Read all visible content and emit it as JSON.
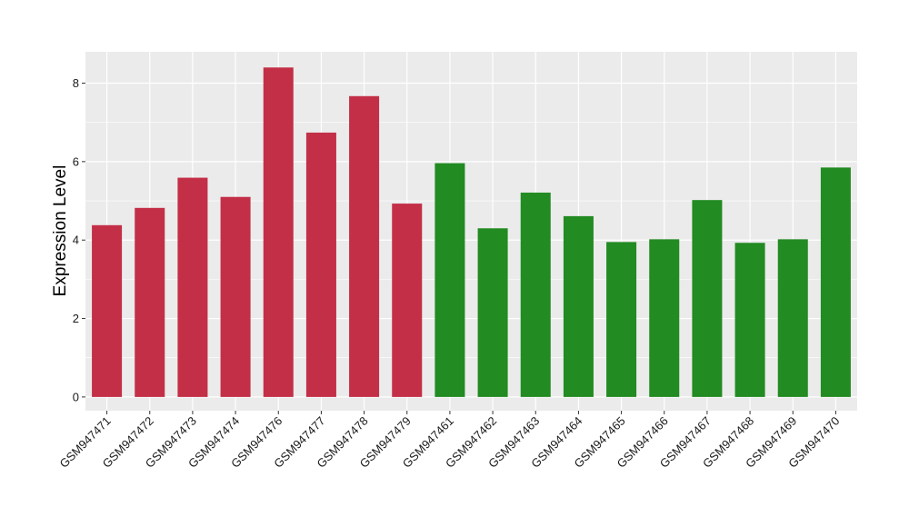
{
  "chart_data": {
    "type": "bar",
    "title": "",
    "xlabel": "",
    "ylabel": "Expression Level",
    "ylim": [
      -0.35,
      8.8
    ],
    "yticks": [
      0,
      2,
      4,
      6,
      8
    ],
    "grid": true,
    "categories": [
      "GSM947471",
      "GSM947472",
      "GSM947473",
      "GSM947474",
      "GSM947476",
      "GSM947477",
      "GSM947478",
      "GSM947479",
      "GSM947461",
      "GSM947462",
      "GSM947463",
      "GSM947464",
      "GSM947465",
      "GSM947466",
      "GSM947467",
      "GSM947468",
      "GSM947469",
      "GSM947470"
    ],
    "values": [
      4.38,
      4.82,
      5.59,
      5.1,
      8.4,
      6.74,
      7.67,
      4.93,
      5.96,
      4.3,
      5.21,
      4.61,
      3.95,
      4.02,
      5.02,
      3.93,
      4.02,
      5.85
    ],
    "colors": [
      "#c32f47",
      "#c32f47",
      "#c32f47",
      "#c32f47",
      "#c32f47",
      "#c32f47",
      "#c32f47",
      "#c32f47",
      "#228b22",
      "#228b22",
      "#228b22",
      "#228b22",
      "#228b22",
      "#228b22",
      "#228b22",
      "#228b22",
      "#228b22",
      "#228b22"
    ],
    "panel_background": "#ebebeb",
    "gridline_color": "#ffffff"
  }
}
